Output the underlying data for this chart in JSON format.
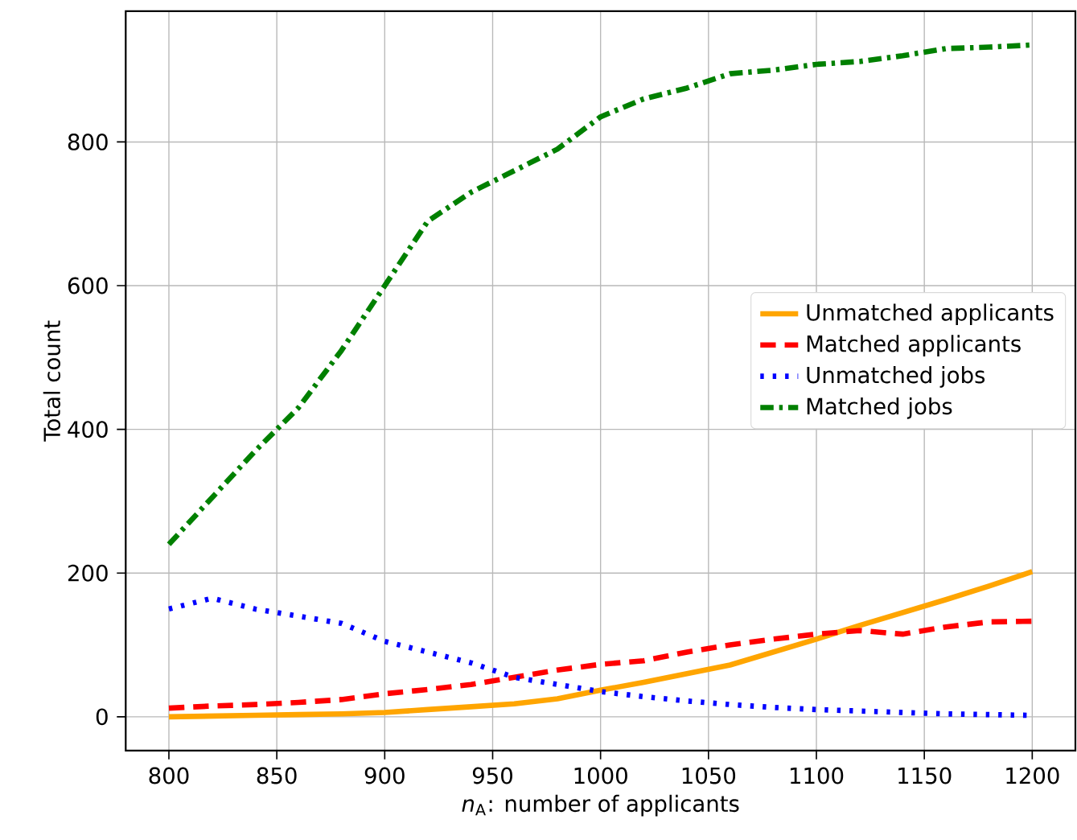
{
  "chart_data": {
    "type": "line",
    "xlabel": "*n*$_{A}$: number of applicants",
    "ylabel": "Total count",
    "x": [
      800,
      820,
      840,
      860,
      880,
      900,
      920,
      940,
      960,
      980,
      1000,
      1020,
      1040,
      1060,
      1080,
      1100,
      1120,
      1140,
      1160,
      1180,
      1200
    ],
    "series": [
      {
        "name": "Unmatched applicants",
        "color": "#ffa500",
        "line_style": "solid",
        "values": [
          0,
          1,
          2,
          3,
          4,
          6,
          10,
          14,
          18,
          25,
          37,
          48,
          60,
          72,
          90,
          108,
          127,
          145,
          163,
          182,
          202
        ]
      },
      {
        "name": "Matched applicants",
        "color": "#ff0000",
        "line_style": "dashed",
        "values": [
          12,
          15,
          17,
          20,
          24,
          32,
          38,
          45,
          55,
          65,
          73,
          78,
          90,
          100,
          108,
          115,
          120,
          115,
          125,
          132,
          133
        ]
      },
      {
        "name": "Unmatched jobs",
        "color": "#0000ff",
        "line_style": "dotted",
        "values": [
          150,
          165,
          150,
          140,
          130,
          105,
          90,
          75,
          55,
          45,
          35,
          28,
          22,
          17,
          13,
          10,
          8,
          6,
          4,
          3,
          2
        ]
      },
      {
        "name": "Matched jobs",
        "color": "#008000",
        "line_style": "dashdot",
        "values": [
          240,
          305,
          370,
          430,
          510,
          600,
          690,
          730,
          760,
          790,
          835,
          860,
          875,
          895,
          900,
          908,
          912,
          920,
          930,
          932,
          935
        ]
      }
    ],
    "xlim": [
      780,
      1220
    ],
    "ylim": [
      -47,
      982
    ],
    "xticks": [
      800,
      850,
      900,
      950,
      1000,
      1050,
      1100,
      1150,
      1200
    ],
    "yticks": [
      0,
      200,
      400,
      600,
      800
    ],
    "grid": true,
    "legend": "right"
  }
}
